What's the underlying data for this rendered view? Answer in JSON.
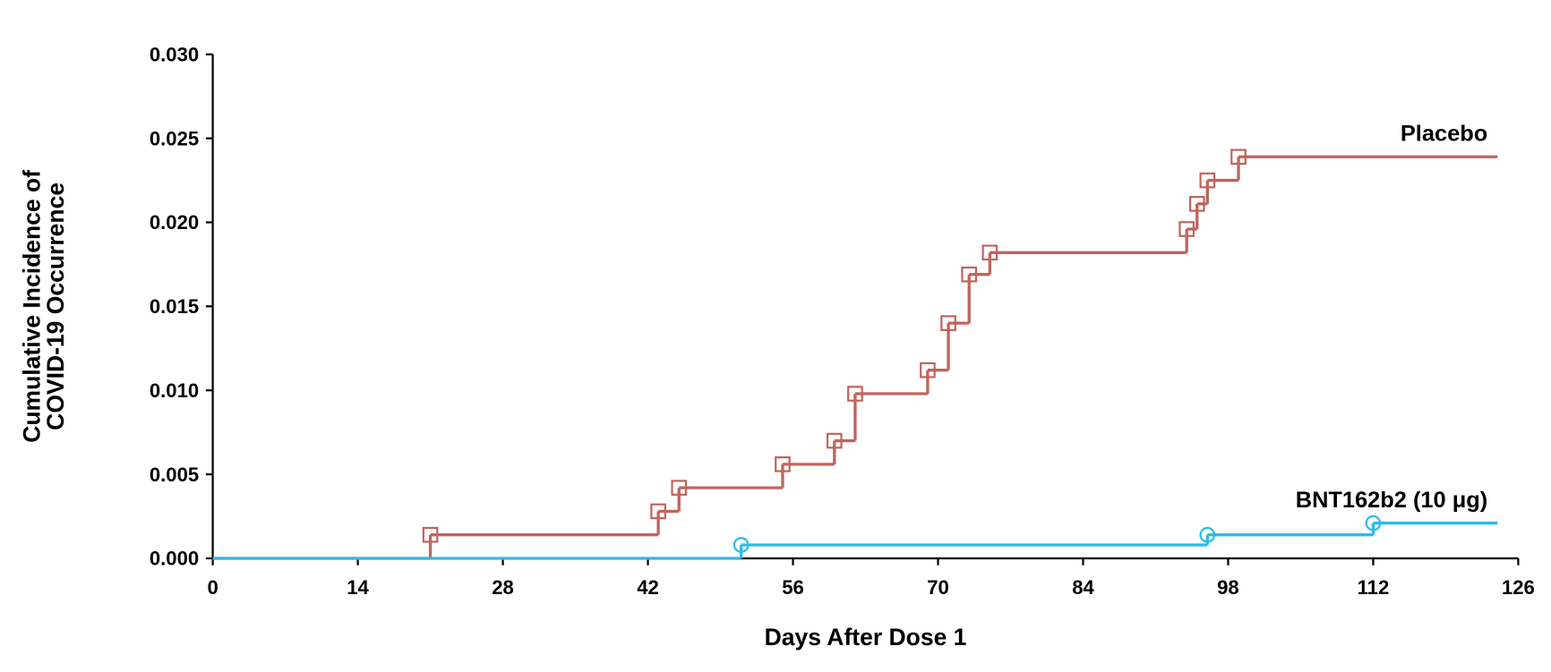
{
  "chart_data": {
    "type": "step",
    "xlabel": "Days After Dose 1",
    "ylabel": [
      "Cumulative Incidence of",
      "COVID-19 Occurrence"
    ],
    "xlim": [
      0,
      126
    ],
    "xticks": [
      0,
      14,
      28,
      42,
      56,
      70,
      84,
      98,
      112,
      126
    ],
    "ylim": [
      0,
      0.03
    ],
    "yticks": [
      {
        "value": 0,
        "label": "0.000"
      },
      {
        "value": 0.005,
        "label": "0.005"
      },
      {
        "value": 0.01,
        "label": "0.010"
      },
      {
        "value": 0.015,
        "label": "0.015"
      },
      {
        "value": 0.02,
        "label": "0.020"
      },
      {
        "value": 0.025,
        "label": "0.025"
      },
      {
        "value": 0.03,
        "label": "0.030"
      }
    ],
    "series": [
      {
        "name": "Placebo",
        "color": "#c0645c",
        "marker": "square",
        "x": [
          0,
          21,
          43,
          45,
          55,
          60,
          62,
          69,
          71,
          73,
          75,
          94,
          95,
          96,
          99,
          124
        ],
        "values": [
          0,
          0.0014,
          0.0028,
          0.0042,
          0.0056,
          0.007,
          0.0098,
          0.0112,
          0.014,
          0.0169,
          0.0182,
          0.0196,
          0.0211,
          0.0225,
          0.0239,
          0.0239
        ]
      },
      {
        "name": "BNT162b2 (10 μg)",
        "color": "#2bbbe9",
        "marker": "circle",
        "x": [
          0,
          51,
          96,
          112,
          124
        ],
        "values": [
          0,
          0.0008,
          0.0014,
          0.0021,
          0.0021
        ]
      }
    ]
  }
}
